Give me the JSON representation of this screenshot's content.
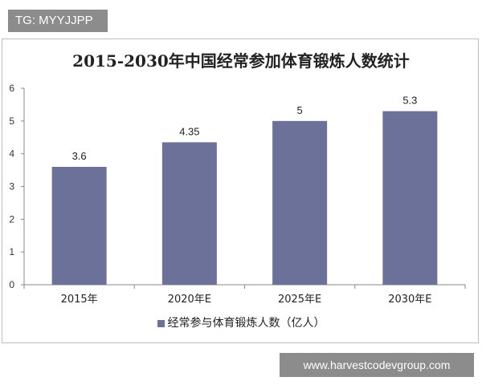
{
  "badge": {
    "text": "TG: MYYJJPP"
  },
  "footer": {
    "url": "www.harvestcodevgroup.com"
  },
  "chart_data": {
    "type": "bar",
    "title": "2015-2030年中国经常参加体育锻炼人数统计",
    "categories": [
      "2015年",
      "2020年E",
      "2025年E",
      "2030年E"
    ],
    "series": [
      {
        "name": "经常参与体育锻炼人数（亿人）",
        "values": [
          3.6,
          4.35,
          5,
          5.3
        ],
        "color": "#6b7199"
      }
    ],
    "data_labels": [
      "3.6",
      "4.35",
      "5",
      "5.3"
    ],
    "yticks": [
      "0",
      "1",
      "2",
      "3",
      "4",
      "5",
      "6"
    ],
    "ylim": [
      0,
      6
    ],
    "grid": false,
    "legend_position": "bottom"
  }
}
